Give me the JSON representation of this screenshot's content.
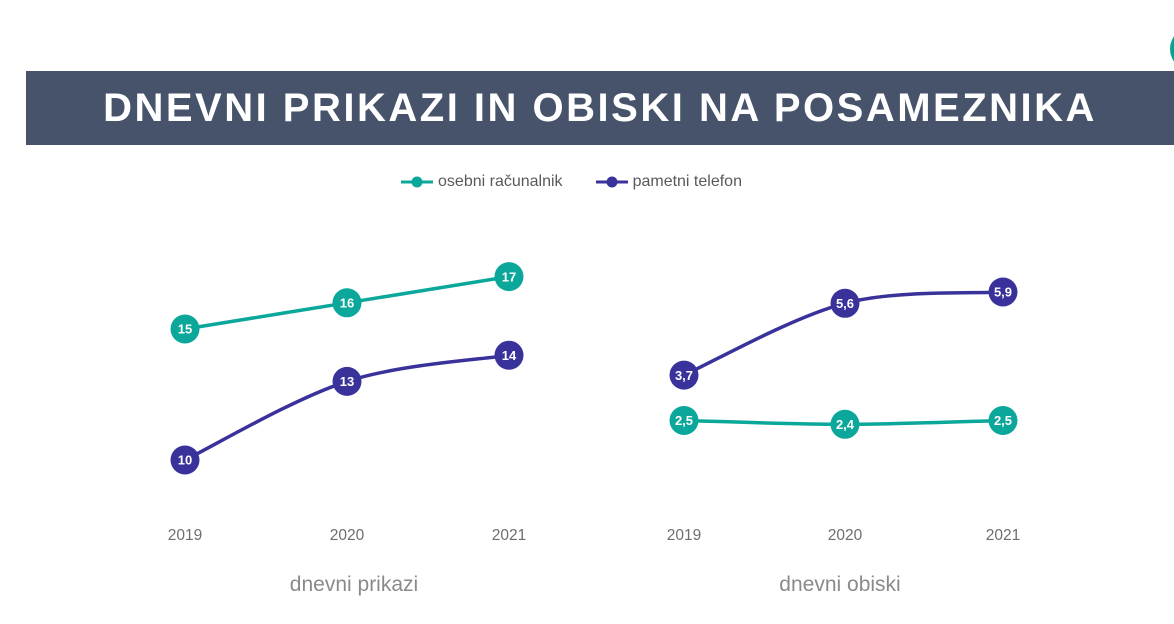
{
  "decor": {
    "corner_dot_color": "#0aa390"
  },
  "header": {
    "title": "DNEVNI PRIKAZI IN OBISKI NA POSAMEZNIKA",
    "bg_color": "#46536a",
    "text_color": "#ffffff"
  },
  "legend": [
    {
      "label": "osebni računalnik",
      "color": "#0ca79b"
    },
    {
      "label": "pametni telefon",
      "color": "#3a329b"
    }
  ],
  "chart_data": [
    {
      "type": "line",
      "title": "dnevni prikazi",
      "x": [
        "2019",
        "2020",
        "2021"
      ],
      "series": [
        {
          "name": "osebni računalnik",
          "color": "#0ca79b",
          "values": [
            15,
            16,
            17
          ],
          "labels": [
            "15",
            "16",
            "17"
          ]
        },
        {
          "name": "pametni telefon",
          "color": "#3a329b",
          "values": [
            10,
            13,
            14
          ],
          "labels": [
            "10",
            "13",
            "14"
          ]
        }
      ],
      "grid": false,
      "data_labels": "inside-markers",
      "legend_position": "top"
    },
    {
      "type": "line",
      "title": "dnevni obiski",
      "x": [
        "2019",
        "2020",
        "2021"
      ],
      "series": [
        {
          "name": "pametni telefon",
          "color": "#3a329b",
          "values": [
            3.7,
            5.6,
            5.9
          ],
          "labels": [
            "3,7",
            "5,6",
            "5,9"
          ]
        },
        {
          "name": "osebni računalnik",
          "color": "#0ca79b",
          "values": [
            2.5,
            2.4,
            2.5
          ],
          "labels": [
            "2,5",
            "2,4",
            "2,5"
          ]
        }
      ],
      "grid": false,
      "data_labels": "inside-markers",
      "legend_position": "top"
    }
  ]
}
